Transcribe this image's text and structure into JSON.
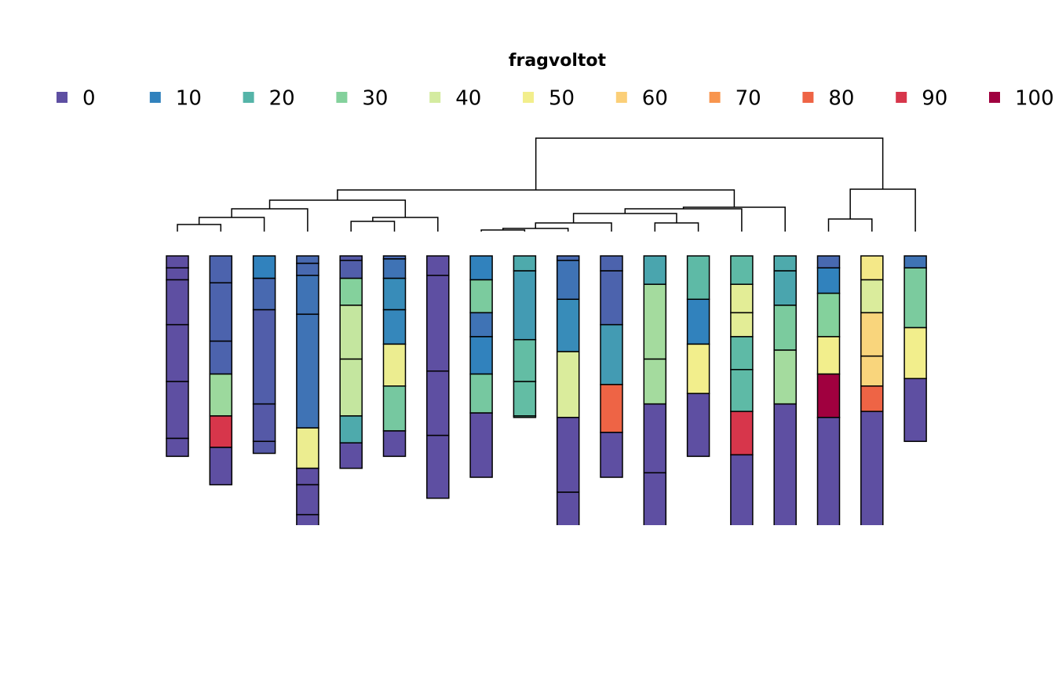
{
  "chart_data": {
    "type": "profile",
    "legend_title": "fragvoltot",
    "legend": {
      "values": [
        0,
        10,
        20,
        30,
        40,
        50,
        60,
        70,
        80,
        90,
        100
      ],
      "colors": [
        "#5e4fa2",
        "#3182bd",
        "#55b4a8",
        "#84d19c",
        "#d4eba0",
        "#f2ee8c",
        "#fbcf78",
        "#f8954e",
        "#ee6445",
        "#d7364b",
        "#a0003f"
      ]
    },
    "ylim": [
      0,
      180
    ],
    "dendrogram_lim": [
      0,
      12
    ],
    "profiles": [
      {
        "layers": [
          {
            "top": 0,
            "bottom": 8,
            "value": 0
          },
          {
            "top": 8,
            "bottom": 16,
            "value": 0
          },
          {
            "top": 16,
            "bottom": 46,
            "value": 0
          },
          {
            "top": 46,
            "bottom": 84,
            "value": 0
          },
          {
            "top": 84,
            "bottom": 122,
            "value": 0
          },
          {
            "top": 122,
            "bottom": 134,
            "value": 0
          }
        ]
      },
      {
        "layers": [
          {
            "top": 0,
            "bottom": 18,
            "value": 4
          },
          {
            "top": 18,
            "bottom": 57,
            "value": 4
          },
          {
            "top": 57,
            "bottom": 79,
            "value": 4
          },
          {
            "top": 79,
            "bottom": 107,
            "value": 33
          },
          {
            "top": 107,
            "bottom": 128,
            "value": 90
          },
          {
            "top": 128,
            "bottom": 153,
            "value": 0
          }
        ]
      },
      {
        "layers": [
          {
            "top": 0,
            "bottom": 15,
            "value": 10
          },
          {
            "top": 15,
            "bottom": 36,
            "value": 5
          },
          {
            "top": 36,
            "bottom": 99,
            "value": 3
          },
          {
            "top": 99,
            "bottom": 124,
            "value": 2
          },
          {
            "top": 124,
            "bottom": 132,
            "value": 2
          }
        ]
      },
      {
        "layers": [
          {
            "top": 0,
            "bottom": 5,
            "value": 5
          },
          {
            "top": 5,
            "bottom": 13,
            "value": 5
          },
          {
            "top": 13,
            "bottom": 39,
            "value": 7
          },
          {
            "top": 39,
            "bottom": 115,
            "value": 7
          },
          {
            "top": 115,
            "bottom": 142,
            "value": 48
          },
          {
            "top": 142,
            "bottom": 153,
            "value": 0
          },
          {
            "top": 153,
            "bottom": 173,
            "value": 0
          },
          {
            "top": 173,
            "bottom": 190,
            "value": 0
          }
        ]
      },
      {
        "layers": [
          {
            "top": 0,
            "bottom": 3,
            "value": 2
          },
          {
            "top": 3,
            "bottom": 15,
            "value": 3
          },
          {
            "top": 15,
            "bottom": 33,
            "value": 30
          },
          {
            "top": 33,
            "bottom": 69,
            "value": 38
          },
          {
            "top": 69,
            "bottom": 107,
            "value": 38
          },
          {
            "top": 107,
            "bottom": 125,
            "value": 18
          },
          {
            "top": 125,
            "bottom": 142,
            "value": 0
          }
        ]
      },
      {
        "layers": [
          {
            "top": 0,
            "bottom": 2,
            "value": 5
          },
          {
            "top": 2,
            "bottom": 15,
            "value": 7
          },
          {
            "top": 15,
            "bottom": 36,
            "value": 12
          },
          {
            "top": 36,
            "bottom": 59,
            "value": 11
          },
          {
            "top": 59,
            "bottom": 87,
            "value": 48
          },
          {
            "top": 87,
            "bottom": 117,
            "value": 27
          },
          {
            "top": 117,
            "bottom": 134,
            "value": 0
          }
        ]
      },
      {
        "layers": [
          {
            "top": 0,
            "bottom": 13,
            "value": 0
          },
          {
            "top": 13,
            "bottom": 77,
            "value": 0
          },
          {
            "top": 77,
            "bottom": 120,
            "value": 0
          },
          {
            "top": 120,
            "bottom": 162,
            "value": 0
          }
        ]
      },
      {
        "layers": [
          {
            "top": 0,
            "bottom": 16,
            "value": 10
          },
          {
            "top": 16,
            "bottom": 38,
            "value": 28
          },
          {
            "top": 38,
            "bottom": 54,
            "value": 7
          },
          {
            "top": 54,
            "bottom": 79,
            "value": 10
          },
          {
            "top": 79,
            "bottom": 105,
            "value": 27
          },
          {
            "top": 105,
            "bottom": 148,
            "value": 0
          }
        ]
      },
      {
        "layers": [
          {
            "top": 0,
            "bottom": 10,
            "value": 18
          },
          {
            "top": 10,
            "bottom": 56,
            "value": 15
          },
          {
            "top": 56,
            "bottom": 84,
            "value": 23
          },
          {
            "top": 84,
            "bottom": 107,
            "value": 23
          },
          {
            "top": 107,
            "bottom": 108,
            "value": 23
          }
        ]
      },
      {
        "layers": [
          {
            "top": 0,
            "bottom": 3,
            "value": 5
          },
          {
            "top": 3,
            "bottom": 29,
            "value": 7
          },
          {
            "top": 29,
            "bottom": 64,
            "value": 12
          },
          {
            "top": 64,
            "bottom": 108,
            "value": 42
          },
          {
            "top": 108,
            "bottom": 158,
            "value": 0
          },
          {
            "top": 158,
            "bottom": 190,
            "value": 0
          }
        ]
      },
      {
        "layers": [
          {
            "top": 0,
            "bottom": 10,
            "value": 4
          },
          {
            "top": 10,
            "bottom": 46,
            "value": 4
          },
          {
            "top": 46,
            "bottom": 86,
            "value": 15
          },
          {
            "top": 86,
            "bottom": 118,
            "value": 80
          },
          {
            "top": 118,
            "bottom": 148,
            "value": 0
          }
        ]
      },
      {
        "layers": [
          {
            "top": 0,
            "bottom": 19,
            "value": 17
          },
          {
            "top": 19,
            "bottom": 69,
            "value": 34
          },
          {
            "top": 69,
            "bottom": 99,
            "value": 34
          },
          {
            "top": 99,
            "bottom": 145,
            "value": 0
          },
          {
            "top": 145,
            "bottom": 190,
            "value": 0
          }
        ]
      },
      {
        "layers": [
          {
            "top": 0,
            "bottom": 29,
            "value": 22
          },
          {
            "top": 29,
            "bottom": 59,
            "value": 10
          },
          {
            "top": 59,
            "bottom": 92,
            "value": 50
          },
          {
            "top": 92,
            "bottom": 134,
            "value": 0
          }
        ]
      },
      {
        "layers": [
          {
            "top": 0,
            "bottom": 19,
            "value": 22
          },
          {
            "top": 19,
            "bottom": 38,
            "value": 45
          },
          {
            "top": 38,
            "bottom": 54,
            "value": 45
          },
          {
            "top": 54,
            "bottom": 76,
            "value": 22
          },
          {
            "top": 76,
            "bottom": 104,
            "value": 22
          },
          {
            "top": 104,
            "bottom": 133,
            "value": 90
          },
          {
            "top": 133,
            "bottom": 190,
            "value": 0
          }
        ]
      },
      {
        "layers": [
          {
            "top": 0,
            "bottom": 10,
            "value": 18
          },
          {
            "top": 10,
            "bottom": 33,
            "value": 17
          },
          {
            "top": 33,
            "bottom": 63,
            "value": 28
          },
          {
            "top": 63,
            "bottom": 99,
            "value": 34
          },
          {
            "top": 99,
            "bottom": 190,
            "value": 0
          }
        ]
      },
      {
        "layers": [
          {
            "top": 0,
            "bottom": 8,
            "value": 5
          },
          {
            "top": 8,
            "bottom": 25,
            "value": 10
          },
          {
            "top": 25,
            "bottom": 54,
            "value": 30
          },
          {
            "top": 54,
            "bottom": 79,
            "value": 50
          },
          {
            "top": 79,
            "bottom": 108,
            "value": 100
          },
          {
            "top": 108,
            "bottom": 190,
            "value": 0
          }
        ]
      },
      {
        "layers": [
          {
            "top": 0,
            "bottom": 16,
            "value": 52
          },
          {
            "top": 16,
            "bottom": 38,
            "value": 42
          },
          {
            "top": 38,
            "bottom": 67,
            "value": 58
          },
          {
            "top": 67,
            "bottom": 87,
            "value": 58
          },
          {
            "top": 87,
            "bottom": 104,
            "value": 80
          },
          {
            "top": 104,
            "bottom": 190,
            "value": 0
          }
        ]
      },
      {
        "layers": [
          {
            "top": 0,
            "bottom": 8,
            "value": 7
          },
          {
            "top": 8,
            "bottom": 48,
            "value": 28
          },
          {
            "top": 48,
            "bottom": 82,
            "value": 50
          },
          {
            "top": 82,
            "bottom": 124,
            "value": 0
          }
        ]
      }
    ],
    "merges": [
      {
        "left": -1,
        "right": -2,
        "height": 0.9
      },
      {
        "left": 1,
        "right": -3,
        "height": 1.8
      },
      {
        "left": 2,
        "right": -4,
        "height": 2.9
      },
      {
        "left": -5,
        "right": -6,
        "height": 1.3
      },
      {
        "left": 4,
        "right": -7,
        "height": 1.8
      },
      {
        "left": 3,
        "right": 5,
        "height": 4.0
      },
      {
        "left": -8,
        "right": -9,
        "height": 0.2
      },
      {
        "left": 7,
        "right": -10,
        "height": 0.4
      },
      {
        "left": 8,
        "right": -11,
        "height": 1.1
      },
      {
        "left": -12,
        "right": -13,
        "height": 1.1
      },
      {
        "left": 9,
        "right": 10,
        "height": 2.3
      },
      {
        "left": 11,
        "right": -14,
        "height": 2.9
      },
      {
        "left": 12,
        "right": -15,
        "height": 3.1
      },
      {
        "left": 6,
        "right": 13,
        "height": 5.3
      },
      {
        "left": -16,
        "right": -17,
        "height": 1.6
      },
      {
        "left": 15,
        "right": -18,
        "height": 5.4
      },
      {
        "left": 14,
        "right": 16,
        "height": 11.9
      }
    ]
  }
}
